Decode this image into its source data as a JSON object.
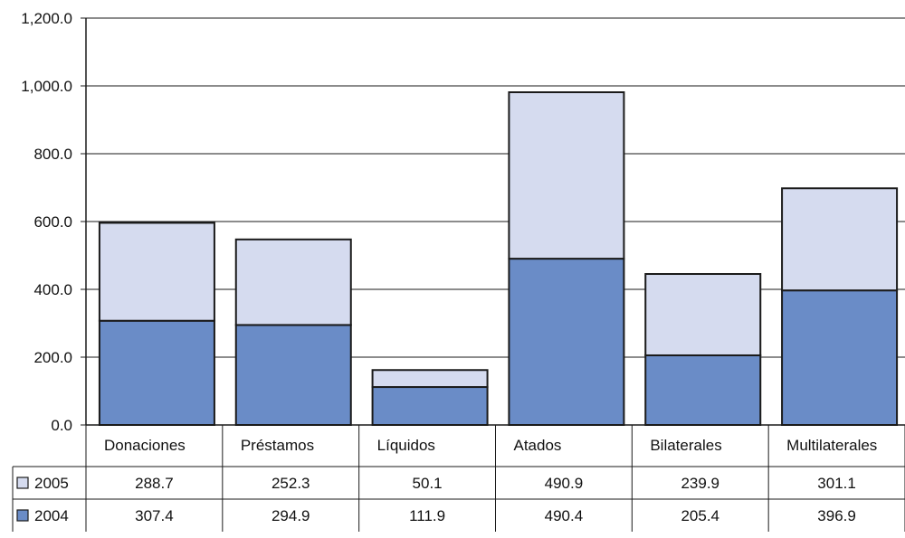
{
  "chart_data": {
    "type": "bar",
    "stacked": true,
    "categories": [
      "Donaciones",
      "Préstamos",
      "Líquidos",
      "Atados",
      "Bilaterales",
      "Multilaterales"
    ],
    "series": [
      {
        "name": "2004",
        "values": [
          307.4,
          294.9,
          111.9,
          490.4,
          205.4,
          396.9
        ],
        "color": "#6a8cc7"
      },
      {
        "name": "2005",
        "values": [
          288.7,
          252.3,
          50.1,
          490.9,
          239.9,
          301.1
        ],
        "color": "#d5dbef"
      }
    ],
    "table_rows": [
      {
        "legend": "2005",
        "values": [
          "288.7",
          "252.3",
          "50.1",
          "490.9",
          "239.9",
          "301.1"
        ],
        "color": "#d5dbef"
      },
      {
        "legend": "2004",
        "values": [
          "307.4",
          "294.9",
          "111.9",
          "490.4",
          "205.4",
          "396.9"
        ],
        "color": "#6a8cc7"
      }
    ],
    "yticks": [
      "0.0",
      "200.0",
      "400.0",
      "600.0",
      "800.0",
      "1,000.0",
      "1,200.0"
    ],
    "ylim": [
      0,
      1200
    ],
    "grid": true,
    "legend_placement": "data-table"
  }
}
